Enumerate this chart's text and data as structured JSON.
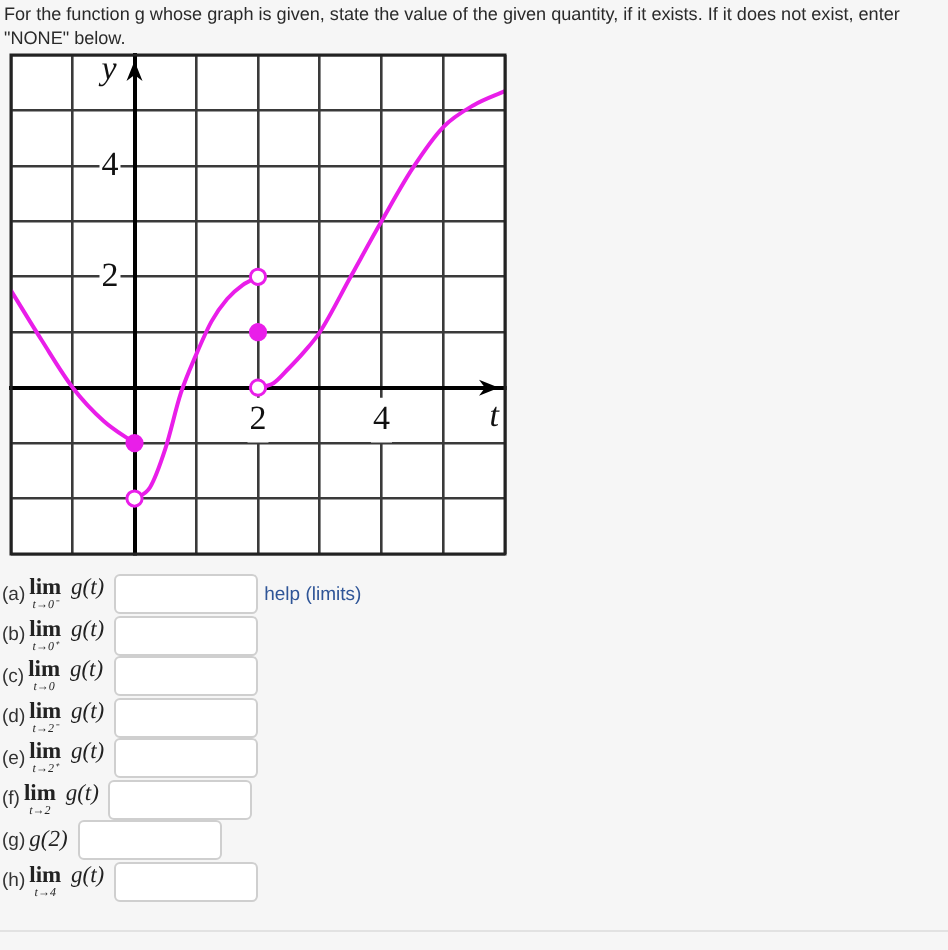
{
  "chart_data": {
    "type": "line",
    "title": "For the function g whose graph is given, state the value of the given quantity, if it exists. If it does not exist, enter \"NONE\" below.",
    "xlabel": "t",
    "ylabel": "y",
    "annotations": [
      "(a) lim$_{t→0⁻}$ g(t)",
      "(b) lim$_{t→0⁺}$ g(t)",
      "(c) lim$_{t→0}$ g(t)",
      "(d) lim$_{t→2⁻}$ g(t)",
      "(e) lim$_{t→2⁺}$ g(t)",
      "(f) lim$_{t→2}$ g(t)",
      "(g) g(2)",
      "(h) lim$_{t→4}$ g(t)",
      "help (limits)"
    ],
    "xlim": [
      -2,
      6
    ],
    "ylim": [
      -3,
      6
    ],
    "xticks": [
      {
        "value": -2,
        "label": null
      },
      {
        "value": -1,
        "label": null
      },
      {
        "value": 0,
        "label": null
      },
      {
        "value": 1,
        "label": null
      },
      2,
      {
        "value": 3,
        "label": null
      },
      4,
      {
        "value": 5,
        "label": null
      },
      {
        "value": 6,
        "label": null
      }
    ],
    "yticks": [
      {
        "value": -3,
        "label": null
      },
      {
        "value": -2,
        "label": null
      },
      {
        "value": -1,
        "label": null
      },
      {
        "value": 0,
        "label": null
      },
      {
        "value": 1,
        "label": null
      },
      2,
      {
        "value": 3,
        "label": null
      },
      4,
      {
        "value": 5,
        "label": null
      },
      {
        "value": 6,
        "label": null
      }
    ],
    "grid": true,
    "legend": false,
    "marker": "none",
    "series": [
      {
        "type": "line",
        "color": "#e91ee9",
        "x": [
          -2,
          -1.5,
          -1,
          -0.5,
          0
        ],
        "values": [
          1.75,
          0.85,
          0,
          -0.6,
          -1
        ]
      },
      {
        "type": "line",
        "color": "#e91ee9",
        "x": [
          0,
          0.25,
          0.5,
          0.75,
          1,
          1.25,
          1.5,
          1.75,
          2
        ],
        "values": [
          -2,
          -1.8,
          -1.1,
          -0.1,
          0.6,
          1.2,
          1.6,
          1.85,
          2
        ]
      },
      {
        "type": "line",
        "color": "#e91ee9",
        "x": [
          2,
          2.25,
          2.5,
          2.75,
          3,
          3.5,
          4,
          4.5,
          5,
          5.5,
          6
        ],
        "values": [
          0,
          0.08,
          0.35,
          0.65,
          1,
          2,
          3,
          3.95,
          4.7,
          5.1,
          5.35
        ]
      },
      {
        "type": "scatter",
        "color": "#e91ee9",
        "marker": "circle",
        "x": [
          0,
          2
        ],
        "values": [
          -1,
          1
        ]
      },
      {
        "type": "scatter",
        "color": "#ffffff",
        "marker": "circle",
        "x": [
          0,
          2,
          2
        ],
        "values": [
          -2,
          2,
          0
        ]
      }
    ]
  }
}
